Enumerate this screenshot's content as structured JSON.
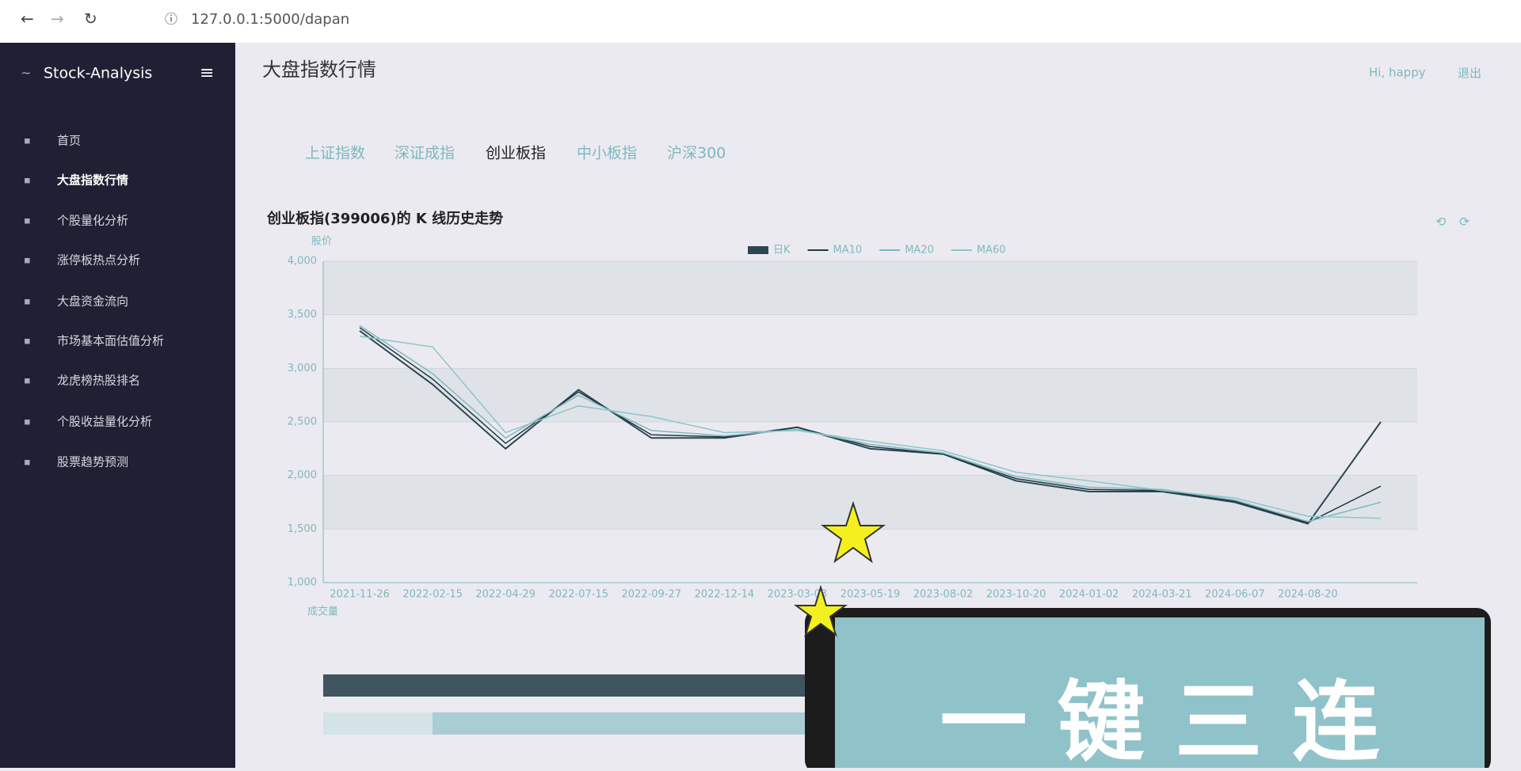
{
  "browser": {
    "url": "127.0.0.1:5000/dapan"
  },
  "sidebar": {
    "brand": "Stock-Analysis",
    "menu": [
      "首页",
      "大盘指数行情",
      "个股量化分析",
      "涨停板热点分析",
      "大盘资金流向",
      "市场基本面估值分析",
      "龙虎榜热股排名",
      "个股收益量化分析",
      "股票趋势预测"
    ]
  },
  "header": {
    "title": "大盘指数行情",
    "greeting": "Hi, happy",
    "logout": "退出"
  },
  "tabs": [
    "上证指数",
    "深证成指",
    "创业板指",
    "中小板指",
    "沪深300"
  ],
  "chart_data": {
    "type": "line",
    "title": "创业板指(399006)的 K 线历史走势",
    "y_label": "股价",
    "volume_label": "成交量",
    "categories": [
      "2021-11-26",
      "2022-02-15",
      "2022-04-29",
      "2022-07-15",
      "2022-09-27",
      "2022-12-14",
      "2023-03-03",
      "2023-05-19",
      "2023-08-02",
      "2023-10-20",
      "2024-01-02",
      "2024-03-21",
      "2024-06-07",
      "2024-08-20",
      null
    ],
    "series": [
      {
        "name": "日K",
        "color": "#2f4554",
        "values": [
          3350,
          2850,
          2250,
          2800,
          2350,
          2350,
          2450,
          2250,
          2200,
          1950,
          1850,
          1850,
          1750,
          1550,
          2500
        ]
      },
      {
        "name": "MA10",
        "color": "#1f3a44",
        "values": [
          3380,
          2900,
          2300,
          2780,
          2380,
          2360,
          2450,
          2270,
          2200,
          1970,
          1870,
          1860,
          1760,
          1560,
          1900
        ]
      },
      {
        "name": "MA20",
        "color": "#7fb8bf",
        "values": [
          3400,
          2950,
          2350,
          2750,
          2420,
          2370,
          2430,
          2290,
          2210,
          1990,
          1890,
          1870,
          1770,
          1570,
          1750
        ]
      },
      {
        "name": "MA60",
        "color": "#8cc5cb",
        "values": [
          3300,
          3200,
          2400,
          2650,
          2550,
          2400,
          2420,
          2320,
          2230,
          2030,
          1950,
          1860,
          1790,
          1620,
          1600
        ]
      }
    ],
    "ylim": [
      1000,
      4000
    ],
    "yticks": [
      {
        "value": 1000,
        "label": "1,000"
      },
      {
        "value": 1500,
        "label": "1,500"
      },
      {
        "value": 2000,
        "label": "2,000"
      },
      {
        "value": 2500,
        "label": "2,500"
      },
      {
        "value": 3000,
        "label": "3,000"
      },
      {
        "value": 3500,
        "label": "3,500"
      },
      {
        "value": 4000,
        "label": "4,000"
      }
    ],
    "grid": true
  },
  "overlay": {
    "text": "一 键 三 连"
  }
}
